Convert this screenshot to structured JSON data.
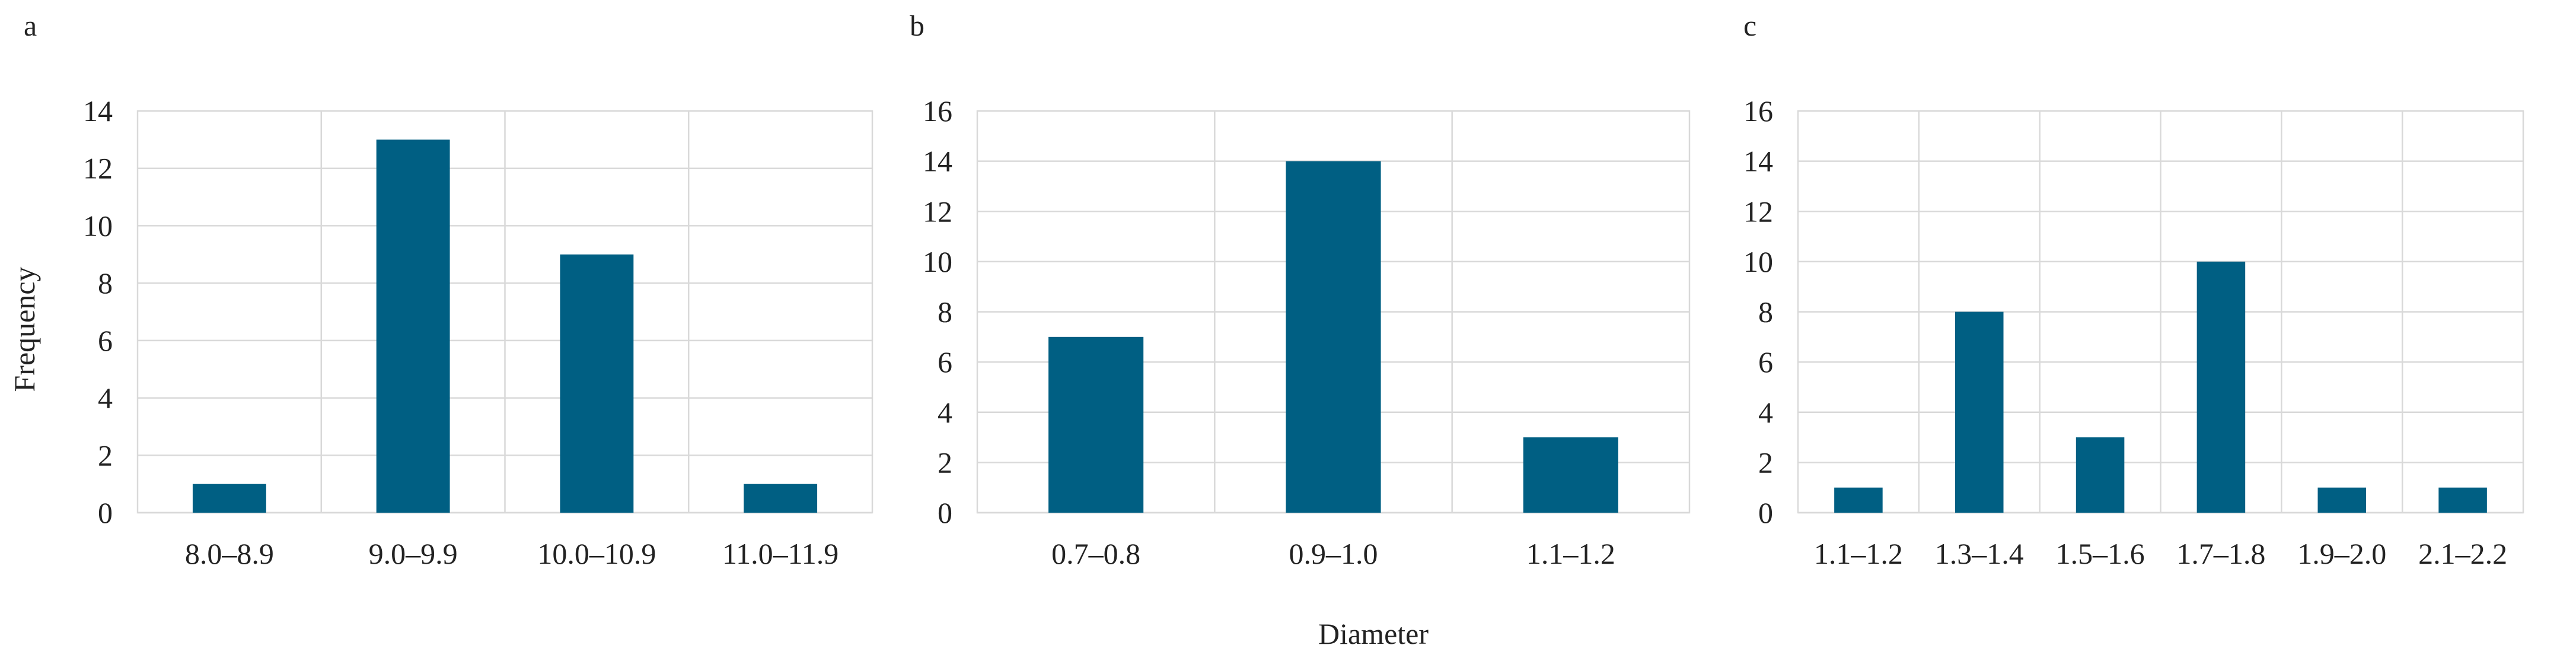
{
  "colors": {
    "bar": "#005f83",
    "grid": "#d9d9d9",
    "text": "#222222"
  },
  "shared_axes": {
    "ylabel": "Frequency",
    "xlabel": "Diameter"
  },
  "chart_data": [
    {
      "panel": "a",
      "type": "bar",
      "categories": [
        "8.0–8.9",
        "9.0–9.9",
        "10.0–10.9",
        "11.0–11.9"
      ],
      "values": [
        1,
        13,
        9,
        1
      ],
      "ylim": [
        0,
        14
      ],
      "yticks": [
        0,
        2,
        4,
        6,
        8,
        10,
        12,
        14
      ],
      "grid": true,
      "bar_color": "#005f83"
    },
    {
      "panel": "b",
      "type": "bar",
      "categories": [
        "0.7–0.8",
        "0.9–1.0",
        "1.1–1.2"
      ],
      "values": [
        7,
        14,
        3
      ],
      "ylim": [
        0,
        16
      ],
      "yticks": [
        0,
        2,
        4,
        6,
        8,
        10,
        12,
        14,
        16
      ],
      "grid": true,
      "bar_color": "#005f83"
    },
    {
      "panel": "c",
      "type": "bar",
      "categories": [
        "1.1–1.2",
        "1.3–1.4",
        "1.5–1.6",
        "1.7–1.8",
        "1.9–2.0",
        "2.1–2.2"
      ],
      "values": [
        1,
        8,
        3,
        10,
        1,
        1
      ],
      "ylim": [
        0,
        16
      ],
      "yticks": [
        0,
        2,
        4,
        6,
        8,
        10,
        12,
        14,
        16
      ],
      "grid": true,
      "bar_color": "#005f83"
    }
  ]
}
